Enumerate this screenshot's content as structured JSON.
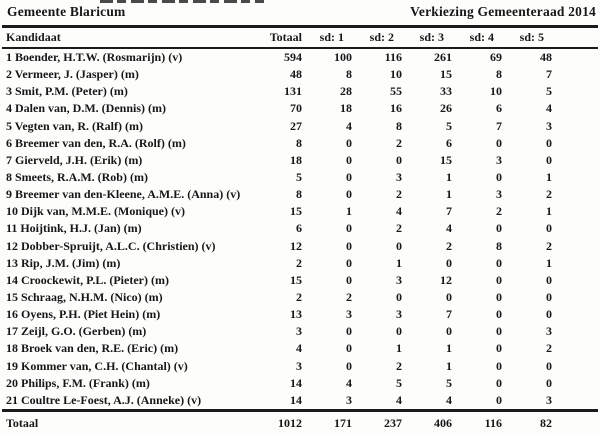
{
  "header": {
    "left_title": "Gemeente Blaricum",
    "right_title": "Verkiezing Gemeenteraad 2014"
  },
  "table": {
    "columns": [
      "Kandidaat",
      "Totaal",
      "sd: 1",
      "sd: 2",
      "sd: 3",
      "sd: 4",
      "sd: 5"
    ],
    "rows": [
      {
        "name": "1 Boender, H.T.W. (Rosmarijn) (v)",
        "values": [
          "594",
          "100",
          "116",
          "261",
          "69",
          "48"
        ]
      },
      {
        "name": "2 Vermeer, J. (Jasper) (m)",
        "values": [
          "48",
          "8",
          "10",
          "15",
          "8",
          "7"
        ]
      },
      {
        "name": "3 Smit, P.M. (Peter) (m)",
        "values": [
          "131",
          "28",
          "55",
          "33",
          "10",
          "5"
        ]
      },
      {
        "name": "4 Dalen van, D.M. (Dennis) (m)",
        "values": [
          "70",
          "18",
          "16",
          "26",
          "6",
          "4"
        ]
      },
      {
        "name": "5 Vegten van, R. (Ralf) (m)",
        "values": [
          "27",
          "4",
          "8",
          "5",
          "7",
          "3"
        ]
      },
      {
        "name": "6 Breemer van den, R.A. (Rolf) (m)",
        "values": [
          "8",
          "0",
          "2",
          "6",
          "0",
          "0"
        ]
      },
      {
        "name": "7 Gierveld, J.H. (Erik) (m)",
        "values": [
          "18",
          "0",
          "0",
          "15",
          "3",
          "0"
        ]
      },
      {
        "name": "8 Smeets, R.A.M. (Rob) (m)",
        "values": [
          "5",
          "0",
          "3",
          "1",
          "0",
          "1"
        ]
      },
      {
        "name": "9 Breemer van den-Kleene, A.M.E. (Anna) (v)",
        "values": [
          "8",
          "0",
          "2",
          "1",
          "3",
          "2"
        ]
      },
      {
        "name": "10 Dijk van, M.M.E. (Monique) (v)",
        "values": [
          "15",
          "1",
          "4",
          "7",
          "2",
          "1"
        ]
      },
      {
        "name": "11 Hoijtink, H.J. (Jan) (m)",
        "values": [
          "6",
          "0",
          "2",
          "4",
          "0",
          "0"
        ]
      },
      {
        "name": "12 Dobber-Spruijt, A.L.C. (Christien) (v)",
        "values": [
          "12",
          "0",
          "0",
          "2",
          "8",
          "2"
        ]
      },
      {
        "name": "13 Rip, J.M. (Jim) (m)",
        "values": [
          "2",
          "0",
          "1",
          "0",
          "0",
          "1"
        ]
      },
      {
        "name": "14 Croockewit, P.L. (Pieter) (m)",
        "values": [
          "15",
          "0",
          "3",
          "12",
          "0",
          "0"
        ]
      },
      {
        "name": "15 Schraag, N.H.M. (Nico) (m)",
        "values": [
          "2",
          "2",
          "0",
          "0",
          "0",
          "0"
        ]
      },
      {
        "name": "16 Oyens, P.H. (Piet Hein) (m)",
        "values": [
          "13",
          "3",
          "3",
          "7",
          "0",
          "0"
        ]
      },
      {
        "name": "17 Zeijl, G.O. (Gerben) (m)",
        "values": [
          "3",
          "0",
          "0",
          "0",
          "0",
          "3"
        ]
      },
      {
        "name": "18 Broek van den, R.E. (Eric) (m)",
        "values": [
          "4",
          "0",
          "1",
          "1",
          "0",
          "2"
        ]
      },
      {
        "name": "19 Kommer van, C.H. (Chantal) (v)",
        "values": [
          "3",
          "0",
          "2",
          "1",
          "0",
          "0"
        ]
      },
      {
        "name": "20 Philips, F.M. (Frank) (m)",
        "values": [
          "14",
          "4",
          "5",
          "5",
          "0",
          "0"
        ]
      },
      {
        "name": "21 Coultre Le-Foest, A.J. (Anneke) (v)",
        "values": [
          "14",
          "3",
          "4",
          "4",
          "0",
          "3"
        ]
      }
    ],
    "total": {
      "label": "Totaal",
      "values": [
        "1012",
        "171",
        "237",
        "406",
        "116",
        "82"
      ]
    }
  },
  "colors": {
    "text": "#171717",
    "rule": "#1b1b1b",
    "background": "#fdfdfc"
  }
}
